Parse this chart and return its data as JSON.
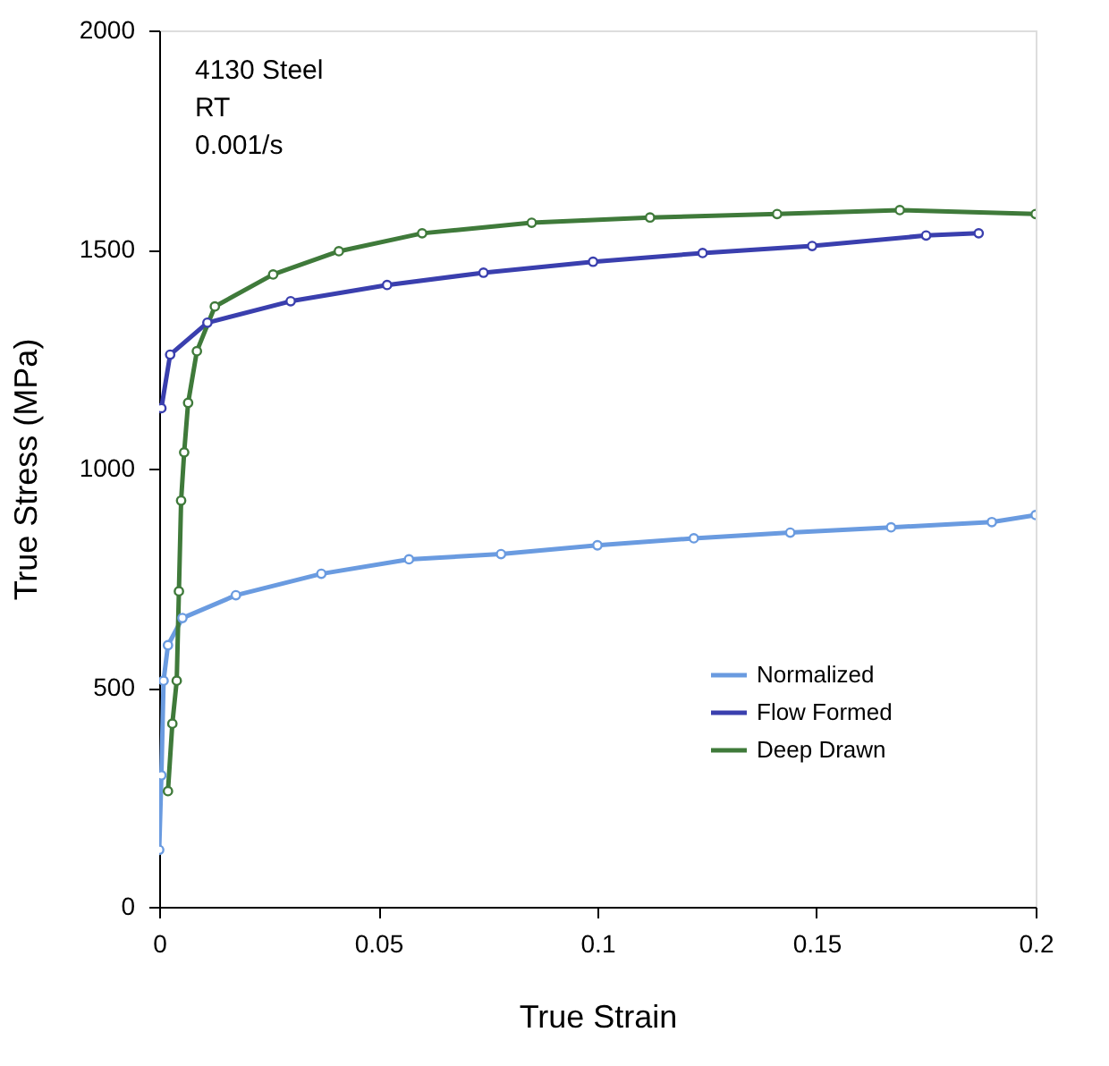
{
  "chart_data": {
    "type": "line",
    "xlabel": "True Strain",
    "ylabel": "True Stress (MPa)",
    "annotations": [
      "4130 Steel",
      "RT",
      "0.001/s"
    ],
    "xlim": [
      0,
      0.2
    ],
    "ylim": [
      0,
      2000
    ],
    "xticks": [
      0,
      0.05,
      0.1,
      0.15,
      0.2
    ],
    "yticks": [
      0,
      500,
      1000,
      1500,
      2000
    ],
    "grid": false,
    "legend": "bottom right",
    "marker": "circle",
    "line_style": "solid",
    "series": [
      {
        "name": "Normalized",
        "color": "#6a9be0",
        "x": [
          0,
          0.0005,
          0.001,
          0.002,
          0.0053,
          0.0175,
          0.037,
          0.057,
          0.078,
          0.1,
          0.122,
          0.144,
          0.167,
          0.19,
          0.2
        ],
        "values": [
          130,
          300,
          516,
          597,
          659,
          711,
          760,
          793,
          805,
          825,
          841,
          854,
          866,
          878,
          894
        ]
      },
      {
        "name": "Flow Formed",
        "color": "#3a3fae",
        "x": [
          0.0005,
          0.0025,
          0.011,
          0.03,
          0.052,
          0.074,
          0.099,
          0.124,
          0.149,
          0.175,
          0.187
        ],
        "values": [
          1138,
          1260,
          1333,
          1382,
          1419,
          1447,
          1472,
          1492,
          1508,
          1532,
          1537
        ]
      },
      {
        "name": "Deep Drawn",
        "color": "#3f7a3a",
        "x": [
          0.002,
          0.003,
          0.004,
          0.0045,
          0.005,
          0.0057,
          0.0066,
          0.0086,
          0.0127,
          0.026,
          0.041,
          0.06,
          0.085,
          0.112,
          0.141,
          0.169,
          0.2
        ],
        "values": [
          264,
          418,
          516,
          720,
          927,
          1037,
          1150,
          1268,
          1370,
          1443,
          1496,
          1537,
          1561,
          1573,
          1581,
          1590,
          1581
        ]
      }
    ]
  }
}
